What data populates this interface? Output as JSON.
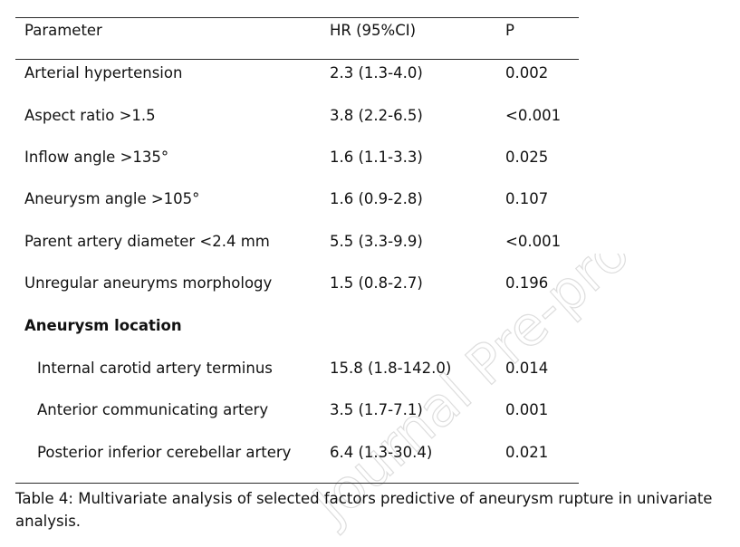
{
  "table": {
    "headers": {
      "parameter": "Parameter",
      "hr": "HR (95%CI)",
      "p": "P"
    },
    "rows": [
      {
        "parameter": "Arterial hypertension",
        "hr": "2.3 (1.3-4.0)",
        "p": "0.002"
      },
      {
        "parameter": "Aspect ratio >1.5",
        "hr": "3.8 (2.2-6.5)",
        "p": "<0.001"
      },
      {
        "parameter": "Inflow angle >135°",
        "hr": "1.6 (1.1-3.3)",
        "p": "0.025"
      },
      {
        "parameter": "Aneurysm angle >105°",
        "hr": "1.6 (0.9-2.8)",
        "p": "0.107"
      },
      {
        "parameter": "Parent artery diameter <2.4 mm",
        "hr": "5.5 (3.3-9.9)",
        "p": "<0.001"
      },
      {
        "parameter": "Unregular aneuryms morphology",
        "hr": "1.5 (0.8-2.7)",
        "p": "0.196"
      }
    ],
    "section_label": "Aneurysm location",
    "sub_rows": [
      {
        "parameter": "Internal carotid artery terminus",
        "hr": "15.8 (1.8-142.0)",
        "p": "0.014"
      },
      {
        "parameter": "Anterior communicating artery",
        "hr": "3.5 (1.7-7.1)",
        "p": "0.001"
      },
      {
        "parameter": "Posterior inferior cerebellar artery",
        "hr": "6.4 (1.3-30.4)",
        "p": "0.021"
      }
    ]
  },
  "caption": "Table 4: Multivariate analysis of selected factors predictive of aneurysm rupture in univariate analysis.",
  "watermark": "Journal Pre-proof"
}
